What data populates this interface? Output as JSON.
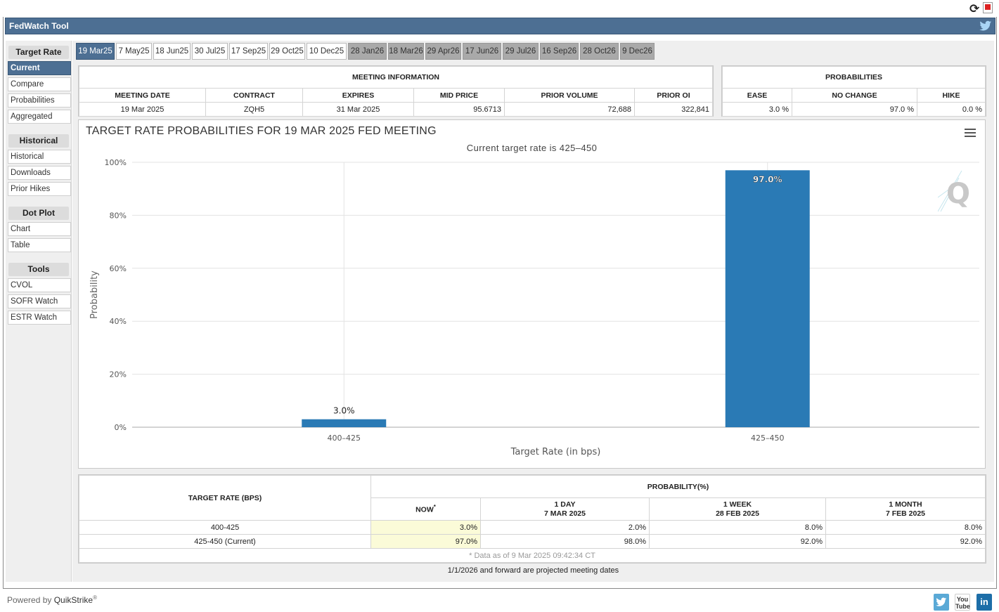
{
  "app": {
    "title": "FedWatch Tool",
    "powered_by": "Powered by",
    "brand": "QuikStrike",
    "brand_mark": "®"
  },
  "sidebar": {
    "sections": [
      {
        "heading": "Target Rate",
        "items": [
          "Current",
          "Compare",
          "Probabilities",
          "Aggregated"
        ]
      },
      {
        "heading": "Historical",
        "items": [
          "Historical",
          "Downloads",
          "Prior Hikes"
        ]
      },
      {
        "heading": "Dot Plot",
        "items": [
          "Chart",
          "Table"
        ]
      },
      {
        "heading": "Tools",
        "items": [
          "CVOL",
          "SOFR Watch",
          "ESTR Watch"
        ]
      }
    ],
    "active_item": "Current"
  },
  "tabs": [
    {
      "label": "19 Mar25",
      "state": "active"
    },
    {
      "label": "7 May25",
      "state": "normal"
    },
    {
      "label": "18 Jun25",
      "state": "normal"
    },
    {
      "label": "30 Jul25",
      "state": "normal"
    },
    {
      "label": "17 Sep25",
      "state": "normal"
    },
    {
      "label": "29 Oct25",
      "state": "normal"
    },
    {
      "label": "10 Dec25",
      "state": "normal"
    },
    {
      "label": "28 Jan26",
      "state": "projected"
    },
    {
      "label": "18 Mar26",
      "state": "projected"
    },
    {
      "label": "29 Apr26",
      "state": "projected"
    },
    {
      "label": "17 Jun26",
      "state": "projected"
    },
    {
      "label": "29 Jul26",
      "state": "projected"
    },
    {
      "label": "16 Sep26",
      "state": "projected"
    },
    {
      "label": "28 Oct26",
      "state": "projected"
    },
    {
      "label": "9 Dec26",
      "state": "projected"
    }
  ],
  "meeting_info": {
    "heading": "MEETING INFORMATION",
    "columns": [
      "MEETING DATE",
      "CONTRACT",
      "EXPIRES",
      "MID PRICE",
      "PRIOR VOLUME",
      "PRIOR OI"
    ],
    "values": [
      "19 Mar 2025",
      "ZQH5",
      "31 Mar 2025",
      "95.6713",
      "72,688",
      "322,841"
    ]
  },
  "probabilities": {
    "heading": "PROBABILITIES",
    "columns": [
      "EASE",
      "NO CHANGE",
      "HIKE"
    ],
    "values": [
      "3.0 %",
      "97.0 %",
      "0.0 %"
    ]
  },
  "chart_data": {
    "type": "bar",
    "title": "TARGET RATE PROBABILITIES FOR 19 MAR 2025 FED MEETING",
    "subtitle": "Current target rate is 425–450",
    "xlabel": "Target Rate (in bps)",
    "ylabel": "Probability",
    "categories": [
      "400–425",
      "425–450"
    ],
    "values": [
      3.0,
      97.0
    ],
    "data_labels": [
      "3.0%",
      "97.0%"
    ],
    "ylim": [
      0,
      100
    ],
    "yticks": [
      0,
      20,
      40,
      60,
      80,
      100
    ],
    "ytick_labels": [
      "0%",
      "20%",
      "40%",
      "60%",
      "80%",
      "100%"
    ],
    "grid": true,
    "legend": "none",
    "bar_color": "#2a7ab5"
  },
  "rate_table": {
    "col_target": "TARGET RATE (BPS)",
    "col_group": "PROBABILITY(%)",
    "sub_cols": [
      {
        "l1": "NOW",
        "l2": "",
        "mark": "*"
      },
      {
        "l1": "1 DAY",
        "l2": "7 MAR 2025",
        "mark": ""
      },
      {
        "l1": "1 WEEK",
        "l2": "28 FEB 2025",
        "mark": ""
      },
      {
        "l1": "1 MONTH",
        "l2": "7 FEB 2025",
        "mark": ""
      }
    ],
    "rows": [
      {
        "rate": "400-425",
        "values": [
          "3.0%",
          "2.0%",
          "8.0%",
          "8.0%"
        ]
      },
      {
        "rate": "425-450 (Current)",
        "values": [
          "97.0%",
          "98.0%",
          "92.0%",
          "92.0%"
        ]
      }
    ],
    "note": "* Data as of 9 Mar 2025 09:42:34 CT"
  },
  "footnote": "1/1/2026 and forward are projected meeting dates",
  "social": {
    "twitter": "",
    "youtube": "You Tube",
    "linkedin": "in"
  }
}
